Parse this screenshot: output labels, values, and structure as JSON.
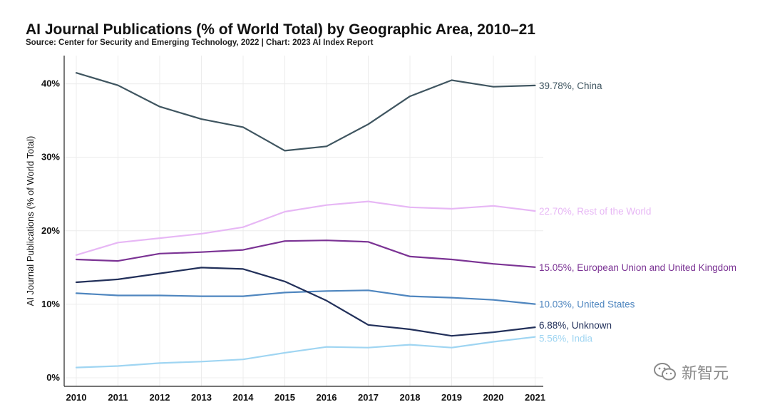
{
  "chart_data": {
    "type": "line",
    "title": "AI Journal Publications (% of World Total) by Geographic Area, 2010–21",
    "subtitle": "Source: Center for Security and Emerging Technology, 2022 | Chart: 2023 AI Index Report",
    "xlabel": "",
    "ylabel": "AI Journal Publications (% of World Total)",
    "x": [
      "2010",
      "2011",
      "2012",
      "2013",
      "2014",
      "2015",
      "2016",
      "2017",
      "2018",
      "2019",
      "2020",
      "2021"
    ],
    "ylim": [
      0,
      43
    ],
    "yticks": [
      0,
      10,
      20,
      30,
      40
    ],
    "ytick_labels": [
      "0%",
      "10%",
      "20%",
      "30%",
      "40%"
    ],
    "grid": true,
    "legend": "end-of-line labels",
    "series": [
      {
        "name": "China",
        "label": "39.78%, China",
        "color": "#3f5560",
        "values": [
          41.5,
          39.8,
          36.9,
          35.2,
          34.1,
          30.9,
          31.5,
          34.5,
          38.3,
          40.5,
          39.6,
          39.78
        ]
      },
      {
        "name": "Rest of the World",
        "label": "22.70%, Rest of the World",
        "color": "#e7b7f5",
        "values": [
          16.7,
          18.4,
          19.0,
          19.6,
          20.5,
          22.6,
          23.5,
          24.0,
          23.2,
          23.0,
          23.4,
          22.7
        ]
      },
      {
        "name": "European Union and United Kingdom",
        "label": "15.05%, European Union and United Kingdom",
        "color": "#7b3394",
        "values": [
          16.1,
          15.9,
          16.9,
          17.1,
          17.4,
          18.6,
          18.7,
          18.5,
          16.5,
          16.1,
          15.5,
          15.05
        ]
      },
      {
        "name": "United States",
        "label": "10.03%, United States",
        "color": "#4f86bf",
        "values": [
          11.5,
          11.2,
          11.2,
          11.1,
          11.1,
          11.6,
          11.8,
          11.9,
          11.1,
          10.9,
          10.6,
          10.03
        ]
      },
      {
        "name": "Unknown",
        "label": "6.88%, Unknown",
        "color": "#22305a",
        "values": [
          13.0,
          13.4,
          14.2,
          15.0,
          14.8,
          13.1,
          10.5,
          7.2,
          6.6,
          5.7,
          6.2,
          6.88
        ]
      },
      {
        "name": "India",
        "label": "5.56%, India",
        "color": "#9fd5f2",
        "values": [
          1.4,
          1.6,
          2.0,
          2.2,
          2.5,
          3.4,
          4.2,
          4.1,
          4.5,
          4.1,
          4.9,
          5.56
        ]
      }
    ]
  },
  "watermark": {
    "text": "新智元",
    "icon": "wechat-icon"
  }
}
